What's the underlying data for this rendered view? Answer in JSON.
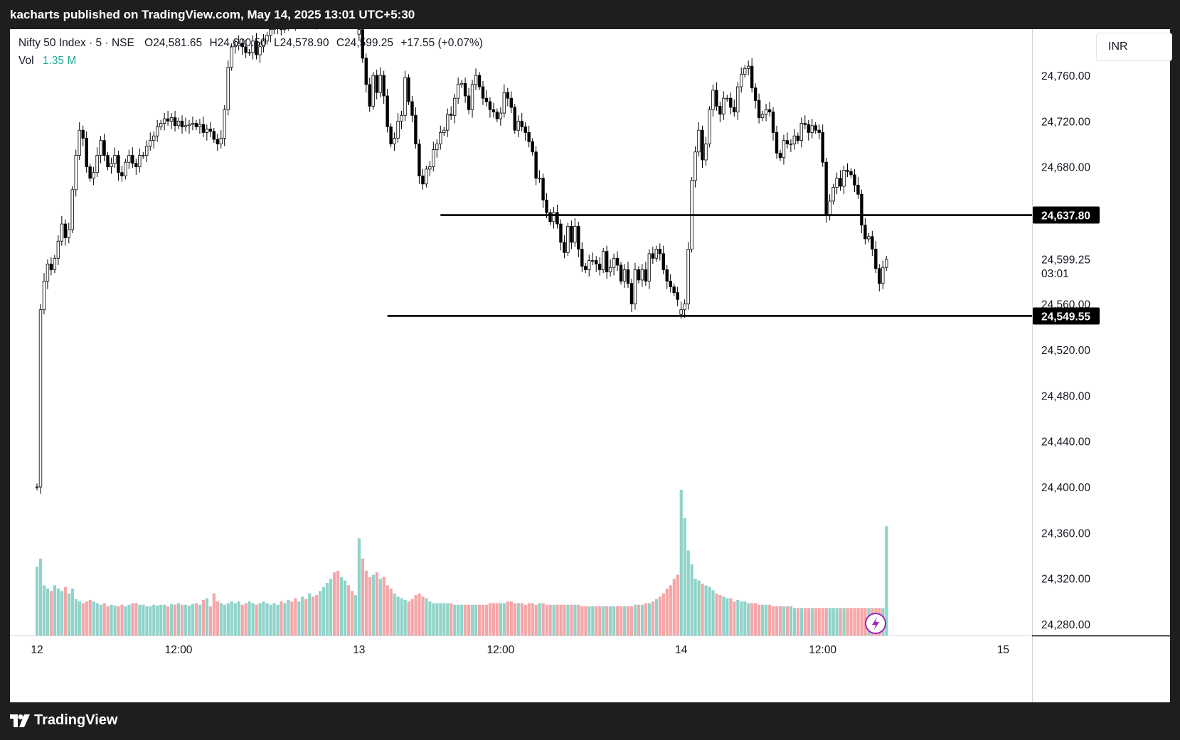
{
  "header": {
    "publisher_line": "kacharts published on TradingView.com, May 14, 2025 13:01 UTC+5:30"
  },
  "legend": {
    "symbol": "Nifty 50 Index · 5 · NSE",
    "open_label": "O",
    "open": "24,581.65",
    "high_label": "H",
    "high": "24,600.50",
    "low_label": "L",
    "low": "24,578.90",
    "close_label": "C",
    "close": "24,599.25",
    "change": "+17.55 (+0.07%)",
    "vol_label": "Vol",
    "vol": "1.35 M"
  },
  "currency": "INR",
  "footer": {
    "brand": "TradingView"
  },
  "colors": {
    "up": "#22ab94",
    "down": "#f7525f",
    "vol_up": "#8fd3c9",
    "vol_down": "#f5a6a8",
    "line": "#000000"
  },
  "chart_data": {
    "type": "candlestick",
    "ylim": [
      24260,
      24790
    ],
    "y_ticks": [
      "24,760.00",
      "24,720.00",
      "24,680.00",
      "24,640.00",
      "24,600.00",
      "24,560.00",
      "24,520.00",
      "24,480.00",
      "24,440.00",
      "24,400.00",
      "24,360.00",
      "24,320.00",
      "24,280.00"
    ],
    "y_tick_values": [
      24760,
      24720,
      24680,
      24640,
      24600,
      24560,
      24520,
      24480,
      24440,
      24400,
      24360,
      24320,
      24280
    ],
    "x_ticks": [
      {
        "label": "12",
        "bar": 0
      },
      {
        "label": "12:00",
        "bar": 40
      },
      {
        "label": "13",
        "bar": 91
      },
      {
        "label": "12:00",
        "bar": 131
      },
      {
        "label": "14",
        "bar": 182
      },
      {
        "label": "12:00",
        "bar": 222
      },
      {
        "label": "15",
        "bar": 273
      }
    ],
    "price_labels": [
      {
        "value": "24,637.80",
        "price": 24637.8,
        "style": "black"
      },
      {
        "value": "24,599.25",
        "price": 24599.25,
        "style": "plain"
      },
      {
        "value": "03:01",
        "price": 24587,
        "style": "plain"
      },
      {
        "value": "24,549.55",
        "price": 24549.55,
        "style": "black"
      }
    ],
    "horizontal_lines": [
      {
        "price": 24637.8,
        "from_bar": 114
      },
      {
        "price": 24549.55,
        "from_bar": 99
      }
    ],
    "days": [
      {
        "start_bar": 0,
        "closes": [
          24400,
          24555,
          24580,
          24595,
          24590,
          24600,
          24615,
          24630,
          24618,
          24625,
          24660,
          24690,
          24712,
          24705,
          24680,
          24670,
          24675,
          24690,
          24703,
          24690,
          24680,
          24683,
          24690,
          24675,
          24672,
          24684,
          24690,
          24683,
          24680,
          24690,
          24690,
          24698,
          24703,
          24707,
          24715,
          24718,
          24722,
          24720,
          24723,
          24716,
          24720,
          24715,
          24716,
          24717,
          24718,
          24715,
          24717,
          24710,
          24713,
          24711,
          24704,
          24700,
          24705,
          24730,
          24767,
          24785,
          24786,
          24788,
          24785,
          24780,
          24780,
          24790,
          24778,
          24785,
          24790,
          24795,
          24800,
          24803,
          24805,
          24800,
          24805,
          24810,
          24808,
          24806,
          24812,
          24815,
          24810,
          24812,
          24810,
          24805,
          24807,
          24810,
          24815,
          24820,
          24815,
          24812,
          24815,
          24820,
          24816,
          24815,
          24816
        ],
        "vols": [
          0.85,
          0.95,
          0.62,
          0.58,
          0.55,
          0.62,
          0.58,
          0.55,
          0.6,
          0.52,
          0.58,
          0.45,
          0.42,
          0.4,
          0.42,
          0.44,
          0.42,
          0.4,
          0.38,
          0.4,
          0.36,
          0.38,
          0.37,
          0.36,
          0.38,
          0.36,
          0.38,
          0.4,
          0.4,
          0.38,
          0.38,
          0.36,
          0.36,
          0.38,
          0.37,
          0.38,
          0.38,
          0.36,
          0.39,
          0.38,
          0.4,
          0.38,
          0.38,
          0.37,
          0.39,
          0.4,
          0.38,
          0.44,
          0.46,
          0.36,
          0.52,
          0.42,
          0.4,
          0.38,
          0.4,
          0.42,
          0.4,
          0.42,
          0.38,
          0.4,
          0.42,
          0.4,
          0.38,
          0.4,
          0.42,
          0.4,
          0.38,
          0.4,
          0.38,
          0.42,
          0.4,
          0.44,
          0.42,
          0.46,
          0.42,
          0.48,
          0.45,
          0.52,
          0.48,
          0.5,
          0.55,
          0.6,
          0.65,
          0.7,
          0.78,
          0.8,
          0.72,
          0.68,
          0.62,
          0.55,
          0.5
        ]
      },
      {
        "start_bar": 91,
        "closes": [
          24800,
          24775,
          24752,
          24733,
          24760,
          24745,
          24760,
          24742,
          24715,
          24700,
          24705,
          24720,
          24725,
          24758,
          24737,
          24725,
          24700,
          24672,
          24665,
          24678,
          24680,
          24695,
          24700,
          24710,
          24712,
          24726,
          24725,
          24740,
          24752,
          24753,
          24742,
          24730,
          24752,
          24760,
          24750,
          24740,
          24737,
          24730,
          24728,
          24722,
          24727,
          24745,
          24740,
          24732,
          24712,
          24720,
          24715,
          24710,
          24702,
          24693,
          24670,
          24670,
          24651,
          24640,
          24632,
          24640,
          24630,
          24614,
          24605,
          24628,
          24614,
          24628,
          24608,
          24593,
          24590,
          24598,
          24598,
          24595,
          24590,
          24606,
          24588,
          24592,
          24600,
          24594,
          24580,
          24590,
          24578,
          24560,
          24590,
          24581,
          24590,
          24580,
          24604,
          24600,
          24608,
          24604,
          24590,
          24580,
          24575,
          24570,
          24564
        ],
        "vols": [
          1.2,
          0.95,
          0.8,
          0.72,
          0.75,
          0.78,
          0.7,
          0.72,
          0.62,
          0.58,
          0.52,
          0.48,
          0.46,
          0.44,
          0.42,
          0.45,
          0.5,
          0.52,
          0.48,
          0.46,
          0.42,
          0.4,
          0.4,
          0.4,
          0.4,
          0.4,
          0.4,
          0.38,
          0.38,
          0.38,
          0.38,
          0.38,
          0.38,
          0.38,
          0.38,
          0.38,
          0.38,
          0.4,
          0.4,
          0.4,
          0.4,
          0.4,
          0.42,
          0.42,
          0.4,
          0.4,
          0.4,
          0.38,
          0.4,
          0.4,
          0.38,
          0.4,
          0.4,
          0.38,
          0.38,
          0.38,
          0.38,
          0.38,
          0.38,
          0.38,
          0.38,
          0.38,
          0.38,
          0.36,
          0.36,
          0.36,
          0.36,
          0.36,
          0.36,
          0.36,
          0.36,
          0.36,
          0.36,
          0.36,
          0.36,
          0.36,
          0.36,
          0.36,
          0.38,
          0.38,
          0.38,
          0.4,
          0.4,
          0.42,
          0.45,
          0.48,
          0.52,
          0.58,
          0.62,
          0.7,
          0.75
        ]
      },
      {
        "start_bar": 182,
        "closes": [
          24555,
          24560,
          24608,
          24668,
          24693,
          24712,
          24686,
          24700,
          24730,
          24747,
          24733,
          24726,
          24740,
          24740,
          24732,
          24728,
          24750,
          24761,
          24766,
          24768,
          24749,
          24738,
          24723,
          24726,
          24730,
          24728,
          24710,
          24692,
          24688,
          24703,
          24700,
          24700,
          24707,
          24703,
          24718,
          24717,
          24710,
          24716,
          24712,
          24710,
          24684,
          24638,
          24650,
          24662,
          24670,
          24663,
          24677,
          24676,
          24673,
          24664,
          24656,
          24629,
          24617,
          24619,
          24608,
          24591,
          24578,
          24592,
          24599
        ],
        "vols": [
          1.8,
          1.45,
          1.05,
          0.88,
          0.7,
          0.68,
          0.64,
          0.62,
          0.6,
          0.56,
          0.52,
          0.5,
          0.48,
          0.46,
          0.46,
          0.42,
          0.44,
          0.42,
          0.42,
          0.4,
          0.4,
          0.4,
          0.38,
          0.38,
          0.38,
          0.38,
          0.36,
          0.36,
          0.36,
          0.36,
          0.36,
          0.36,
          0.34,
          0.34,
          0.34,
          0.34,
          0.34,
          0.34,
          0.34,
          0.34,
          0.34,
          0.34,
          0.34,
          0.34,
          0.34,
          0.34,
          0.34,
          0.34,
          0.34,
          0.34,
          0.34,
          0.34,
          0.34,
          0.34,
          0.34,
          0.34,
          0.34,
          0.34,
          1.35
        ]
      }
    ]
  }
}
